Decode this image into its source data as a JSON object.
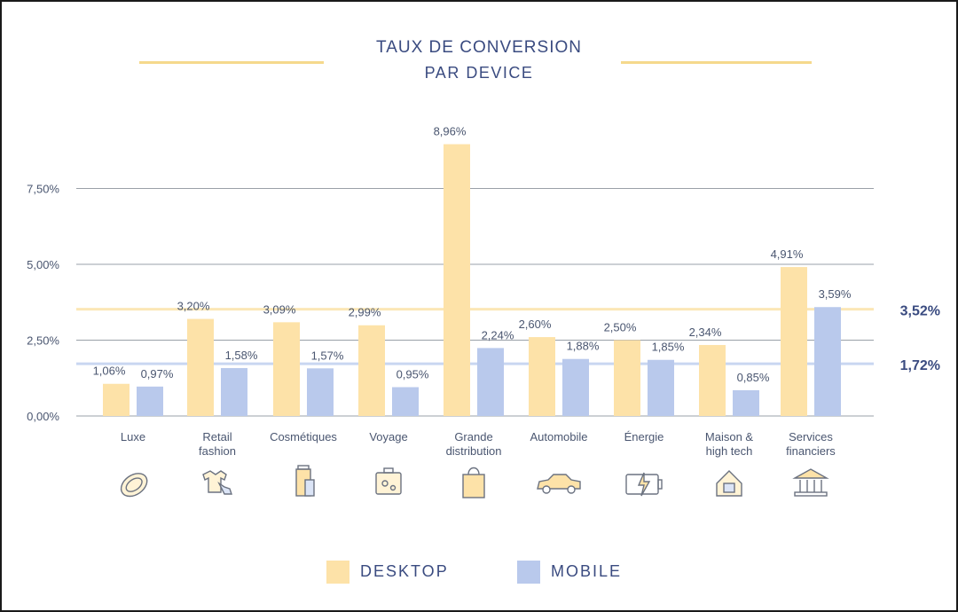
{
  "colors": {
    "desktop": "#fde2a8",
    "mobile": "#b9c9ec",
    "desktop_avg_line": "#fbe7b6",
    "mobile_avg_line": "#c9d6f1",
    "grid": "#9aa0a8",
    "text": "#3a4b80",
    "value_label": "#4a5670",
    "frame": "#1a1a1a"
  },
  "chart_data": {
    "type": "bar",
    "title": "TAUX DE CONVERSION",
    "subtitle": "PAR DEVICE",
    "xlabel": "",
    "ylabel": "",
    "ylim": [
      0,
      10
    ],
    "yticks": [
      {
        "value": 0,
        "label": "0,00%"
      },
      {
        "value": 2.5,
        "label": "2,50%"
      },
      {
        "value": 5,
        "label": "5,00%"
      },
      {
        "value": 7.5,
        "label": "7,50%"
      }
    ],
    "categories": [
      {
        "lines": [
          "Luxe"
        ],
        "icon": "ring-icon"
      },
      {
        "lines": [
          "Retail",
          "fashion"
        ],
        "icon": "clothing-icon"
      },
      {
        "lines": [
          "Cosmétiques"
        ],
        "icon": "cosmetics-icon"
      },
      {
        "lines": [
          "Voyage"
        ],
        "icon": "suitcase-icon"
      },
      {
        "lines": [
          "Grande",
          "distribution"
        ],
        "icon": "shopping-bag-icon"
      },
      {
        "lines": [
          "Automobile"
        ],
        "icon": "car-icon"
      },
      {
        "lines": [
          "Énergie"
        ],
        "icon": "battery-icon"
      },
      {
        "lines": [
          "Maison &",
          "high tech"
        ],
        "icon": "house-icon"
      },
      {
        "lines": [
          "Services",
          "financiers"
        ],
        "icon": "bank-icon"
      }
    ],
    "series": [
      {
        "name": "DESKTOP",
        "values": [
          1.06,
          3.2,
          3.09,
          2.99,
          8.96,
          2.6,
          2.5,
          2.34,
          4.91
        ],
        "labels": [
          "1,06%",
          "3,20%",
          "3,09%",
          "2,99%",
          "8,96%",
          "2,60%",
          "2,50%",
          "2,34%",
          "4,91%"
        ]
      },
      {
        "name": "MOBILE",
        "values": [
          0.97,
          1.58,
          1.57,
          0.95,
          2.24,
          1.88,
          1.85,
          0.85,
          3.59
        ],
        "labels": [
          "0,97%",
          "1,58%",
          "1,57%",
          "0,95%",
          "2,24%",
          "1,88%",
          "1,85%",
          "0,85%",
          "3,59%"
        ]
      }
    ],
    "averages": [
      {
        "series": "DESKTOP",
        "value": 3.52,
        "label": "3,52%"
      },
      {
        "series": "MOBILE",
        "value": 1.72,
        "label": "1,72%"
      }
    ],
    "legend": [
      {
        "name": "DESKTOP"
      },
      {
        "name": "MOBILE"
      }
    ],
    "legend_position": "bottom"
  }
}
